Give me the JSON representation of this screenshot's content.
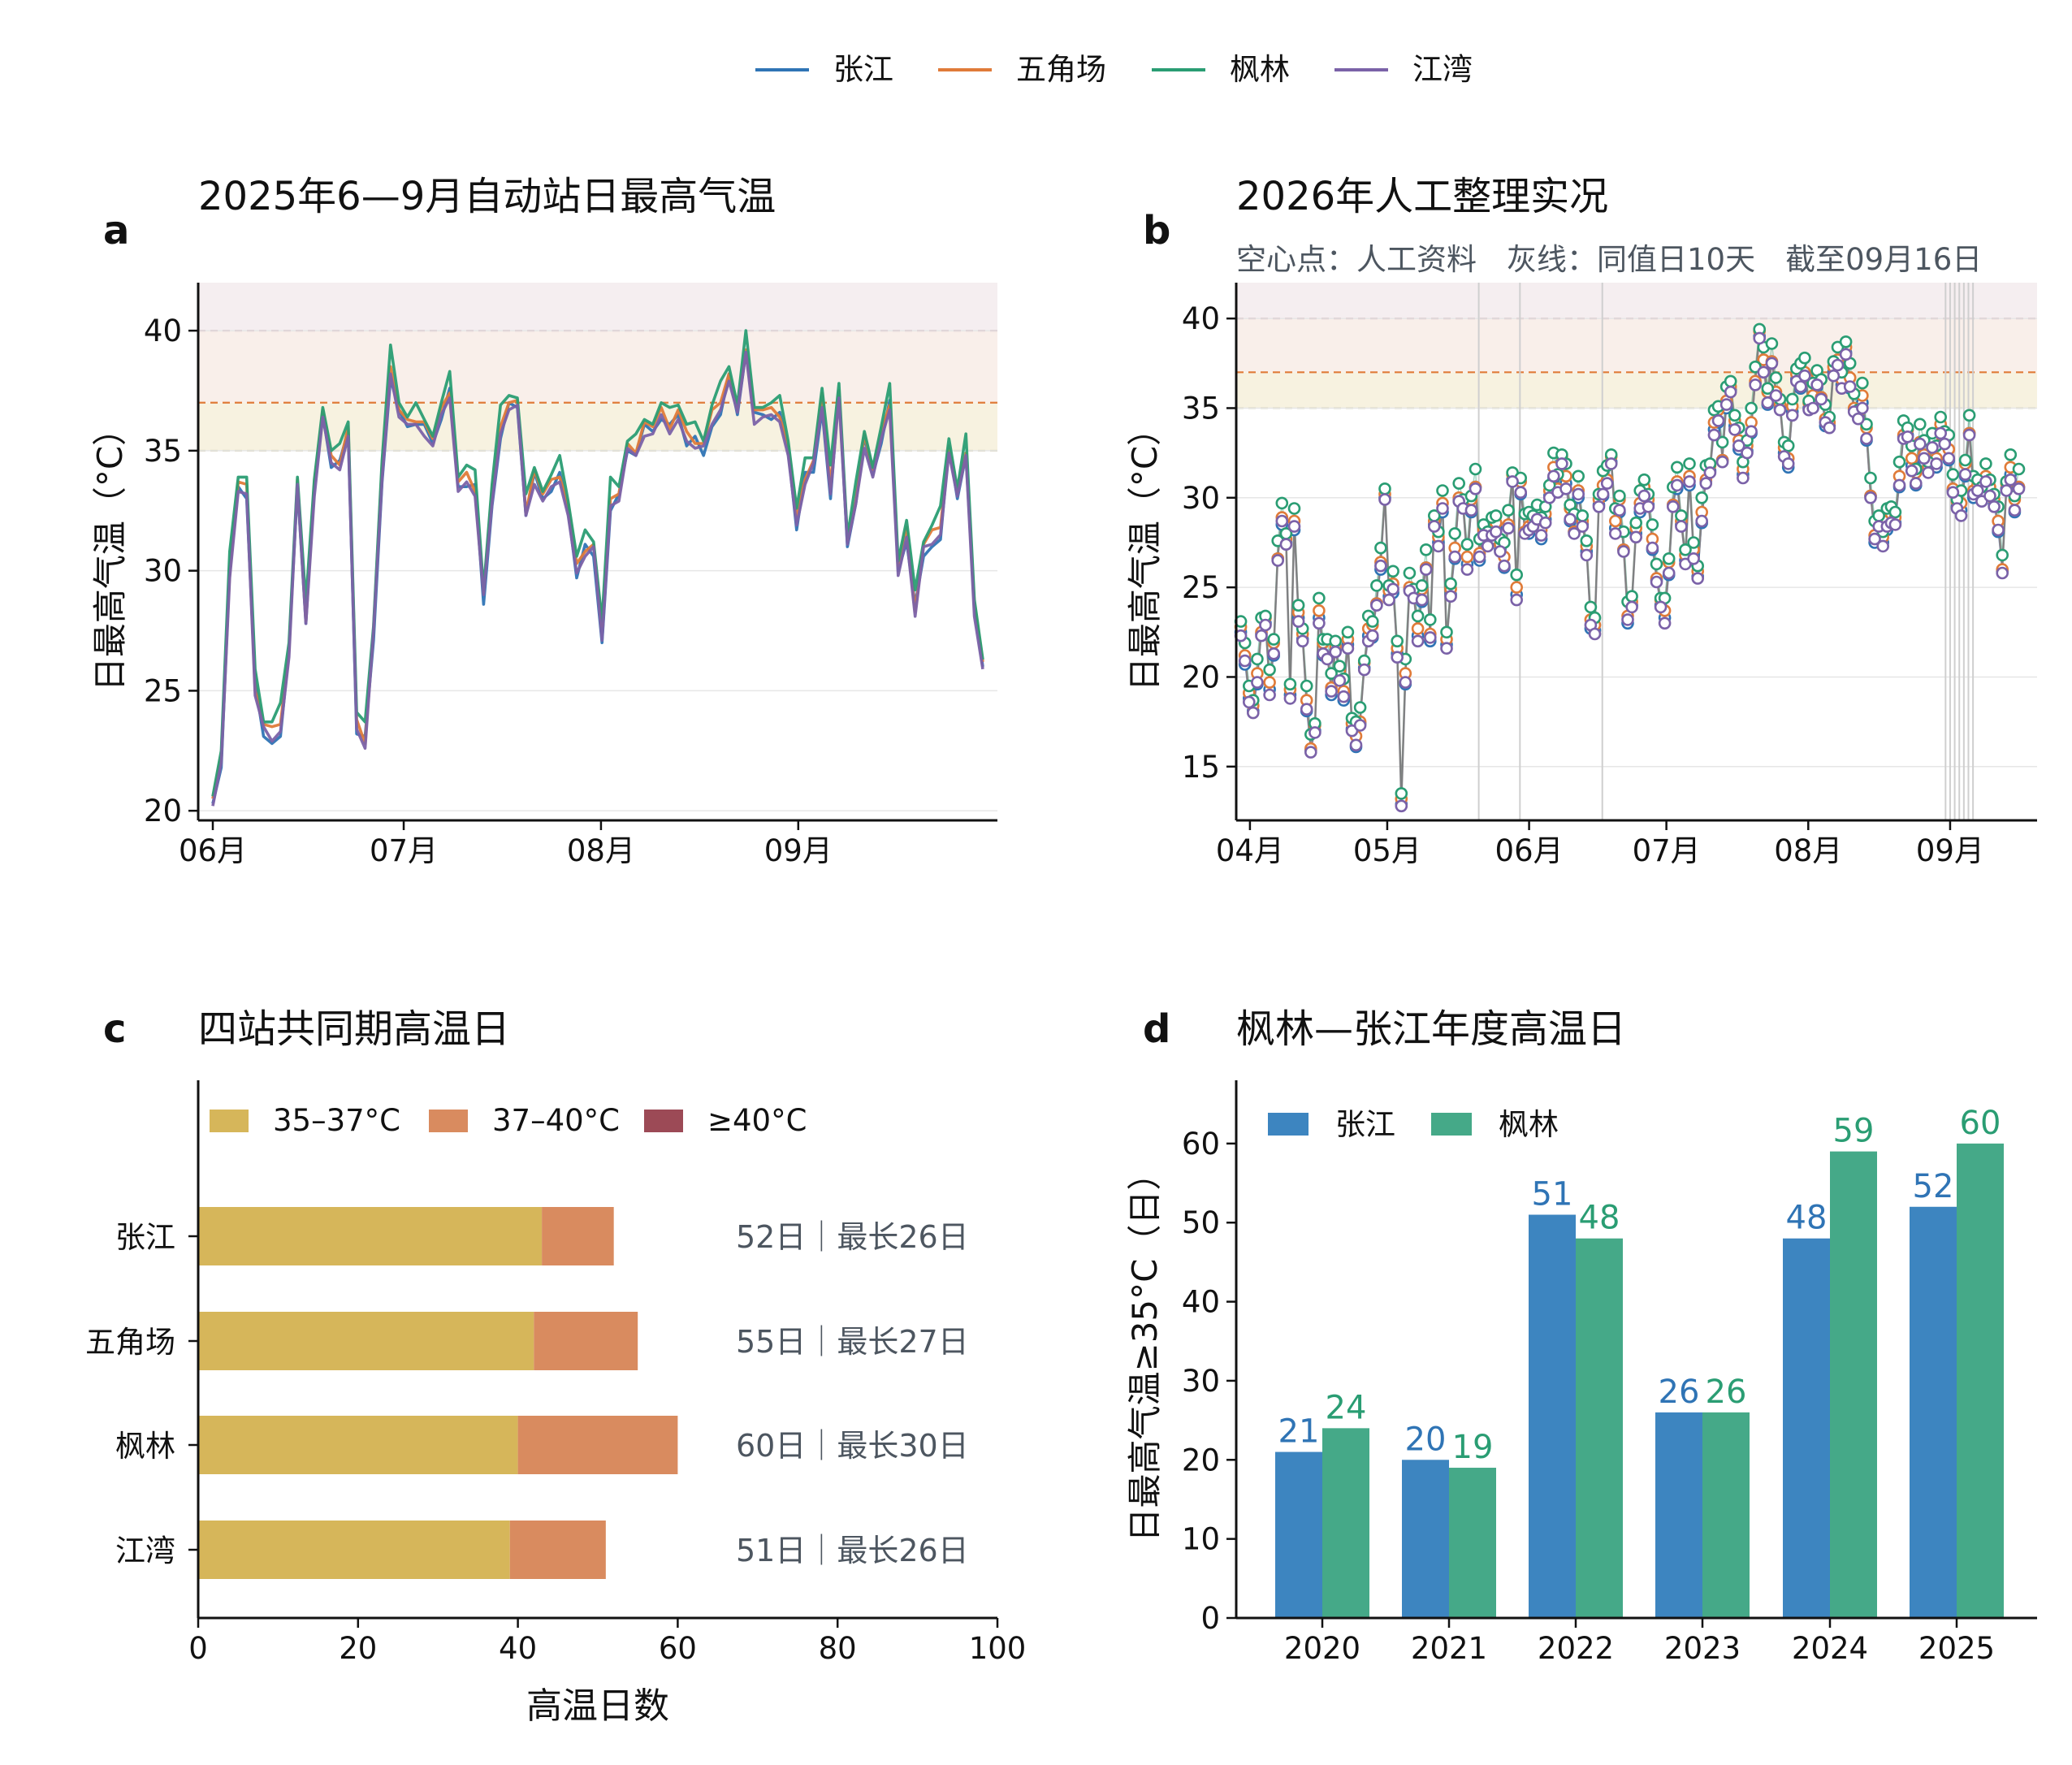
{
  "legend_top": {
    "series": [
      {
        "name": "张江",
        "color": "#2f74b5"
      },
      {
        "name": "五角场",
        "color": "#e07b39"
      },
      {
        "name": "枫林",
        "color": "#2a9d73"
      },
      {
        "name": "江湾",
        "color": "#7b62a8"
      }
    ]
  },
  "chart_data": [
    {
      "panel": "a",
      "type": "line",
      "title": "2025年6—9月自动站日最高气温",
      "xlabel": "",
      "ylabel": "日最高气温（°C）",
      "x_ticks": [
        "06月",
        "07月",
        "08月",
        "09月"
      ],
      "x_range": [
        "2025-06-01",
        "2025-09-30"
      ],
      "y_ticks": [
        20,
        25,
        30,
        35,
        40
      ],
      "ylim": [
        19.6,
        42
      ],
      "thresholds": [
        35,
        37,
        40
      ],
      "grid": "y",
      "base_series": [
        20.3,
        22.0,
        30.0,
        33.5,
        33.3,
        25.2,
        23.5,
        23.1,
        23.6,
        26.5,
        33.5,
        28.0,
        33.5,
        36.5,
        34.5,
        34.5,
        35.8,
        23.5,
        23.0,
        27.5,
        34.0,
        38.5,
        36.5,
        36.0,
        36.3,
        36.0,
        35.3,
        36.5,
        37.5,
        33.5,
        33.8,
        33.5,
        29.0,
        33.0,
        36.0,
        36.8,
        36.8,
        32.5,
        34.0,
        33.0,
        33.5,
        34.0,
        32.5,
        30.0,
        31.0,
        31.0,
        27.3,
        33.0,
        33.0,
        35.0,
        35.0,
        36.0,
        35.8,
        36.5,
        36.0,
        36.5,
        35.5,
        35.5,
        35.2,
        36.3,
        37.0,
        38.0,
        36.5,
        39.3,
        36.5,
        36.5,
        36.5,
        36.5,
        35.0,
        32.0,
        34.0,
        34.5,
        37.0,
        33.5,
        37.3,
        31.0,
        33.0,
        35.5,
        34.0,
        35.5,
        37.0,
        30.0,
        31.5,
        28.5,
        31.0,
        31.3,
        31.8,
        35.0,
        33.0,
        35.0,
        28.5,
        26.0
      ],
      "series": [
        {
          "name": "张江",
          "offsets": [
            0.0,
            -0.2,
            0.1,
            0.0,
            -0.3,
            0.1,
            -0.4,
            -0.3,
            -0.5,
            0.2,
            0.0,
            -0.2,
            0.1
          ]
        },
        {
          "name": "五角场",
          "offsets": [
            0.2,
            0.3,
            -0.1,
            0.2,
            0.3,
            -0.2,
            0.1,
            0.4,
            0.0,
            0.2,
            0.3,
            -0.1,
            0.2
          ]
        },
        {
          "name": "枫林",
          "offsets": [
            0.3,
            0.5,
            0.8,
            0.4,
            0.6,
            0.7,
            0.2,
            0.6,
            0.9,
            0.5,
            0.4,
            0.7,
            0.3
          ]
        },
        {
          "name": "江湾",
          "offsets": [
            -0.1,
            0.0,
            -0.3,
            -0.2,
            -0.1,
            -0.4,
            0.0,
            -0.2,
            -0.3,
            -0.1,
            0.1,
            -0.2,
            -0.4
          ]
        }
      ]
    },
    {
      "panel": "b",
      "type": "scatter",
      "title": "2026年人工整理实况",
      "subtitle": "空心点：人工资料　灰线：同值日10天　截至09月16日",
      "xlabel": "",
      "ylabel": "日最高气温（°C）",
      "x_ticks": [
        "04月",
        "05月",
        "06月",
        "07月",
        "08月",
        "09月"
      ],
      "x_range": [
        "2026-03-29",
        "2026-09-20"
      ],
      "y_ticks": [
        15,
        20,
        25,
        30,
        35,
        40
      ],
      "ylim": [
        12,
        42
      ],
      "thresholds": [
        35,
        37,
        40
      ],
      "grid": "y",
      "same_value_days": [
        "2026-05-21",
        "2026-05-30",
        "2026-06-17",
        "2026-08-31",
        "2026-09-01",
        "2026-09-02",
        "2026-09-03",
        "2026-09-04",
        "2026-09-05",
        "2026-09-06"
      ],
      "base_series": [
        22.5,
        21.0,
        19.0,
        18.0,
        20.0,
        22.5,
        23.0,
        19.5,
        21.5,
        26.5,
        29.0,
        27.5,
        19.0,
        28.5,
        23.5,
        22.0,
        18.5,
        16.0,
        17.0,
        23.5,
        21.5,
        21.0,
        19.5,
        21.5,
        20.0,
        19.0,
        22.0,
        17.0,
        16.5,
        17.5,
        20.5,
        22.5,
        22.5,
        24.0,
        26.5,
        30.0,
        24.5,
        25.0,
        21.5,
        12.8,
        20.0,
        25.0,
        24.5,
        22.5,
        24.5,
        26.0,
        22.5,
        28.5,
        27.5,
        29.5,
        22.0,
        24.5,
        27.0,
        30.0,
        29.5,
        26.5,
        29.5,
        30.5,
        27.0,
        28.0,
        27.5,
        28.0,
        28.5,
        27.0,
        26.5,
        28.5,
        31.0,
        24.8,
        30.5,
        28.0,
        28.5,
        28.5,
        29.0,
        28.0,
        29.0,
        30.0,
        31.5,
        30.5,
        32.0,
        31.0,
        29.0,
        28.0,
        30.5,
        28.5,
        27.0,
        23.0,
        22.8,
        29.5,
        30.5,
        31.0,
        32.0,
        28.5,
        29.5,
        27.0,
        23.5,
        24.0,
        28.0,
        29.5,
        30.5,
        29.5,
        27.5,
        25.5,
        24.0,
        23.5,
        26.0,
        29.5,
        31.0,
        28.5,
        26.5,
        31.0,
        27.0,
        25.5,
        29.0,
        31.0,
        31.5,
        34.0,
        34.5,
        32.0,
        35.5,
        36.0,
        34.0,
        33.0,
        31.5,
        32.5,
        34.0,
        36.5,
        39.0,
        37.5,
        35.5,
        37.5,
        36.0,
        35.0,
        32.5,
        32.0,
        35.0,
        36.5,
        36.5,
        37.0,
        35.0,
        35.5,
        36.5,
        35.5,
        34.5,
        34.0,
        37.0,
        37.5,
        36.5,
        38.0,
        36.5,
        35.0,
        34.5,
        35.5,
        33.5,
        30.0,
        28.0,
        28.5,
        27.5,
        28.5,
        29.0,
        28.5,
        31.0,
        33.5,
        33.5,
        32.0,
        31.0,
        33.0,
        32.5,
        31.5,
        33.0,
        32.0,
        34.0,
        33.0,
        32.5,
        30.5,
        29.5,
        29.5,
        31.5,
        33.5,
        30.5,
        30.5,
        30.0,
        31.0,
        30.5,
        29.5,
        28.5,
        26.0,
        30.5,
        31.5,
        29.5,
        30.5
      ],
      "series": [
        {
          "name": "张江",
          "offsets": [
            0.0,
            -0.3,
            -0.2,
            0.1,
            -0.4,
            -0.1,
            0.0,
            -0.2,
            -0.3,
            0.1,
            -0.5,
            0.0
          ]
        },
        {
          "name": "五角场",
          "offsets": [
            0.3,
            0.2,
            0.1,
            0.4,
            0.2,
            0.0,
            0.3,
            0.2,
            0.4,
            0.1,
            -0.1,
            0.2
          ]
        },
        {
          "name": "枫林",
          "offsets": [
            0.6,
            0.9,
            0.5,
            0.7,
            1.0,
            0.8,
            0.4,
            0.9,
            0.6,
            1.1,
            0.7,
            0.5
          ]
        },
        {
          "name": "江湾",
          "offsets": [
            -0.2,
            -0.1,
            -0.4,
            0.0,
            -0.3,
            -0.2,
            -0.1,
            -0.5,
            -0.2,
            0.0,
            -0.3,
            -0.1
          ]
        }
      ]
    },
    {
      "panel": "c",
      "type": "bar",
      "orientation": "horizontal",
      "stacked": true,
      "title": "四站共同期高温日",
      "xlabel": "高温日数",
      "ylabel": "",
      "xlim": [
        0,
        100
      ],
      "x_ticks": [
        0,
        20,
        40,
        60,
        80,
        100
      ],
      "categories": [
        "张江",
        "五角场",
        "枫林",
        "江湾"
      ],
      "series": [
        {
          "name": "35–37°C",
          "color": "#d6b65a",
          "values": [
            43,
            42,
            40,
            39
          ]
        },
        {
          "name": "37–40°C",
          "color": "#d98b5f",
          "values": [
            9,
            13,
            20,
            12
          ]
        },
        {
          "name": "≥40°C",
          "color": "#9c4a56",
          "values": [
            0,
            0,
            0,
            0
          ]
        }
      ],
      "annotations": [
        "52日｜最长26日",
        "55日｜最长27日",
        "60日｜最长30日",
        "51日｜最长26日"
      ],
      "legend": "top-left"
    },
    {
      "panel": "d",
      "type": "bar",
      "title": "枫林—张江年度高温日",
      "xlabel": "",
      "ylabel": "日最高气温≥35°C（日）",
      "ylim": [
        0,
        68
      ],
      "y_ticks": [
        0,
        10,
        20,
        30,
        40,
        50,
        60
      ],
      "categories": [
        "2020",
        "2021",
        "2022",
        "2023",
        "2024",
        "2025"
      ],
      "series": [
        {
          "name": "张江",
          "color": "#3d85c0",
          "label_color": "#2f74b5",
          "values": [
            21,
            20,
            51,
            26,
            48,
            52
          ]
        },
        {
          "name": "枫林",
          "color": "#45a988",
          "label_color": "#2a9d73",
          "values": [
            24,
            19,
            48,
            26,
            59,
            60
          ]
        }
      ],
      "legend": "top-left"
    }
  ]
}
